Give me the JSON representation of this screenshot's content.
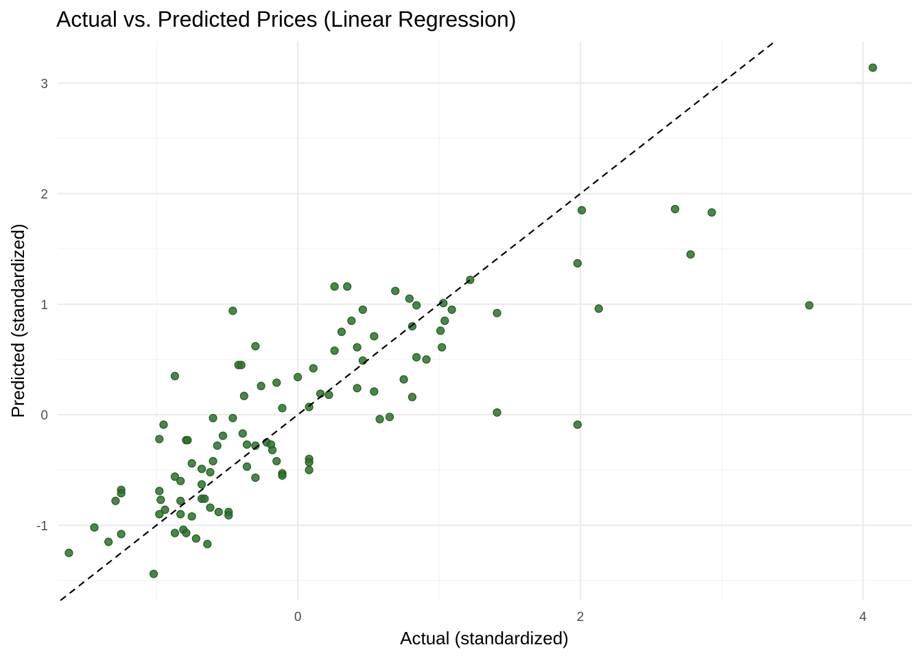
{
  "chart_data": {
    "type": "scatter",
    "title": "Actual vs. Predicted Prices (Linear Regression)",
    "xlabel": "Actual (standardized)",
    "ylabel": "Predicted (standardized)",
    "xlim": [
      -1.7,
      4.35
    ],
    "ylim": [
      -1.68,
      3.38
    ],
    "x_ticks": [
      0,
      2,
      4
    ],
    "x_tick_labels": [
      "0",
      "2",
      "4"
    ],
    "x_minor_ticks": [
      -1,
      1,
      3
    ],
    "y_ticks": [
      -1,
      0,
      1,
      2,
      3
    ],
    "y_tick_labels": [
      "-1",
      "0",
      "1",
      "2",
      "3"
    ],
    "y_minor_ticks": [
      -1.5,
      -0.5,
      0.5,
      1.5,
      2.5
    ],
    "grid": true,
    "legend": "none",
    "reference_line": {
      "type": "identity",
      "style": "dashed",
      "color": "#000000"
    },
    "point_color": "#2e6e2e",
    "point_opacity": 0.85,
    "points": [
      [
        -1.62,
        -1.25
      ],
      [
        -1.44,
        -1.02
      ],
      [
        -1.34,
        -1.15
      ],
      [
        -1.29,
        -0.78
      ],
      [
        -1.25,
        -0.68
      ],
      [
        -1.25,
        -0.71
      ],
      [
        -1.25,
        -1.08
      ],
      [
        -1.02,
        -1.44
      ],
      [
        -0.98,
        -0.22
      ],
      [
        -0.98,
        -0.69
      ],
      [
        -0.98,
        -0.9
      ],
      [
        -0.97,
        -0.77
      ],
      [
        -0.95,
        -0.09
      ],
      [
        -0.94,
        -0.86
      ],
      [
        -0.87,
        0.35
      ],
      [
        -0.87,
        -0.56
      ],
      [
        -0.87,
        -1.07
      ],
      [
        -0.83,
        -0.6
      ],
      [
        -0.83,
        -0.78
      ],
      [
        -0.83,
        -0.9
      ],
      [
        -0.81,
        -1.04
      ],
      [
        -0.79,
        -1.07
      ],
      [
        -0.79,
        -0.23
      ],
      [
        -0.78,
        -0.23
      ],
      [
        -0.75,
        -0.44
      ],
      [
        -0.75,
        -0.92
      ],
      [
        -0.72,
        -1.12
      ],
      [
        -0.68,
        -0.49
      ],
      [
        -0.68,
        -0.63
      ],
      [
        -0.68,
        -0.76
      ],
      [
        -0.66,
        -0.76
      ],
      [
        -0.64,
        -1.17
      ],
      [
        -0.62,
        -0.52
      ],
      [
        -0.62,
        -0.84
      ],
      [
        -0.6,
        -0.03
      ],
      [
        -0.6,
        -0.42
      ],
      [
        -0.57,
        -0.28
      ],
      [
        -0.56,
        -0.88
      ],
      [
        -0.53,
        -0.19
      ],
      [
        -0.49,
        -0.88
      ],
      [
        -0.49,
        -0.91
      ],
      [
        -0.46,
        0.94
      ],
      [
        -0.46,
        -0.03
      ],
      [
        -0.42,
        0.45
      ],
      [
        -0.4,
        0.45
      ],
      [
        -0.39,
        -0.17
      ],
      [
        -0.38,
        0.17
      ],
      [
        -0.36,
        -0.47
      ],
      [
        -0.36,
        -0.27
      ],
      [
        -0.3,
        0.62
      ],
      [
        -0.3,
        -0.28
      ],
      [
        -0.3,
        -0.57
      ],
      [
        -0.26,
        0.26
      ],
      [
        -0.22,
        -0.25
      ],
      [
        -0.19,
        -0.27
      ],
      [
        -0.18,
        -0.32
      ],
      [
        -0.15,
        0.29
      ],
      [
        -0.15,
        -0.42
      ],
      [
        -0.11,
        0.06
      ],
      [
        -0.11,
        -0.53
      ],
      [
        -0.11,
        -0.55
      ],
      [
        0.0,
        0.34
      ],
      [
        0.08,
        0.07
      ],
      [
        0.08,
        -0.4
      ],
      [
        0.08,
        -0.43
      ],
      [
        0.08,
        -0.5
      ],
      [
        0.11,
        0.42
      ],
      [
        0.16,
        0.19
      ],
      [
        0.22,
        0.18
      ],
      [
        0.26,
        1.16
      ],
      [
        0.26,
        0.58
      ],
      [
        0.31,
        0.75
      ],
      [
        0.35,
        1.16
      ],
      [
        0.38,
        0.85
      ],
      [
        0.42,
        0.61
      ],
      [
        0.42,
        0.24
      ],
      [
        0.46,
        0.95
      ],
      [
        0.46,
        0.49
      ],
      [
        0.54,
        0.71
      ],
      [
        0.54,
        0.21
      ],
      [
        0.58,
        -0.04
      ],
      [
        0.65,
        -0.02
      ],
      [
        0.69,
        1.12
      ],
      [
        0.75,
        0.32
      ],
      [
        0.79,
        1.05
      ],
      [
        0.81,
        0.8
      ],
      [
        0.81,
        0.16
      ],
      [
        0.84,
        0.99
      ],
      [
        0.84,
        0.52
      ],
      [
        0.91,
        0.5
      ],
      [
        1.01,
        0.76
      ],
      [
        1.02,
        0.61
      ],
      [
        1.03,
        1.01
      ],
      [
        1.04,
        0.85
      ],
      [
        1.09,
        0.95
      ],
      [
        1.22,
        1.22
      ],
      [
        1.41,
        0.92
      ],
      [
        1.41,
        0.02
      ],
      [
        1.98,
        1.37
      ],
      [
        1.98,
        -0.09
      ],
      [
        2.01,
        1.85
      ],
      [
        2.13,
        0.96
      ],
      [
        2.67,
        1.86
      ],
      [
        2.78,
        1.45
      ],
      [
        2.93,
        1.83
      ],
      [
        3.62,
        0.99
      ],
      [
        4.07,
        3.14
      ]
    ]
  }
}
